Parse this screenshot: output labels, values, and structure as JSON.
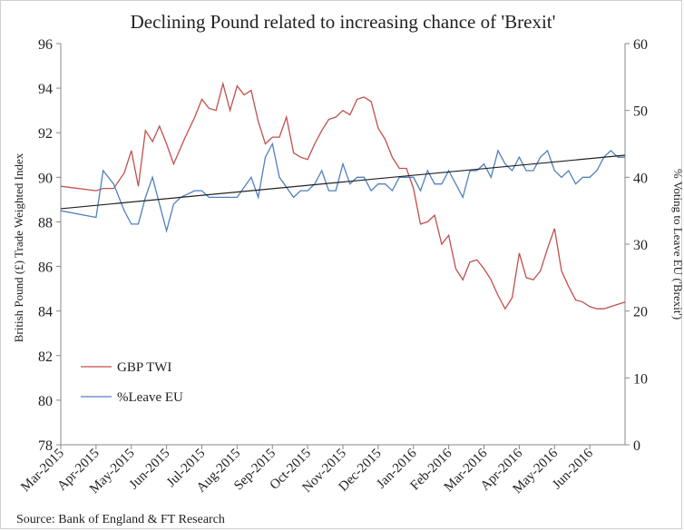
{
  "chart_data": {
    "type": "line",
    "title": "Declining Pound related to increasing chance of 'Brexit'",
    "ylabel_left": "British  Pound (£) Trade Weighted Index",
    "ylabel_right": "% Voting to Leave EU ('Brexit')",
    "source": "Source: Bank of England  & FT Research",
    "ylim_left": [
      78,
      96
    ],
    "ylim_right": [
      0,
      60
    ],
    "yticks_left": [
      "78",
      "80",
      "82",
      "84",
      "86",
      "88",
      "90",
      "92",
      "94",
      "96"
    ],
    "yticks_right": [
      "0",
      "10",
      "20",
      "30",
      "40",
      "50",
      "60"
    ],
    "x_tick_labels": [
      "Mar-2015",
      "Apr-2015",
      "May-2015",
      "Jun-2015",
      "Jul-2015",
      "Aug-2015",
      "Sep-2015",
      "Oct-2015",
      "Nov-2015",
      "Dec-2015",
      "Jan-2016",
      "Feb-2016",
      "Mar-2016",
      "Apr-2016",
      "May-2016",
      "Jun-2016"
    ],
    "legend_placement": "bottom-left",
    "grid": false,
    "series": [
      {
        "name": "GBP TWI",
        "axis": "left",
        "color": "#c0504d",
        "t": [
          0.0,
          1.0,
          1.2,
          1.5,
          1.8,
          2.0,
          2.2,
          2.4,
          2.6,
          2.8,
          3.0,
          3.2,
          3.5,
          3.8,
          4.0,
          4.2,
          4.4,
          4.6,
          4.8,
          5.0,
          5.2,
          5.4,
          5.6,
          5.8,
          6.0,
          6.2,
          6.4,
          6.6,
          6.8,
          7.0,
          7.2,
          7.4,
          7.6,
          7.8,
          8.0,
          8.2,
          8.4,
          8.6,
          8.8,
          9.0,
          9.2,
          9.4,
          9.6,
          9.8,
          10.0,
          10.2,
          10.4,
          10.6,
          10.8,
          11.0,
          11.2,
          11.4,
          11.6,
          11.8,
          12.0,
          12.2,
          12.4,
          12.6,
          12.8,
          13.0,
          13.2,
          13.4,
          13.6,
          13.8,
          14.0,
          14.2,
          14.4,
          14.6,
          14.8,
          15.0,
          15.2,
          15.4,
          15.6,
          15.8,
          16.0
        ],
        "values": [
          89.6,
          89.4,
          89.5,
          89.5,
          90.2,
          91.2,
          89.6,
          92.1,
          91.6,
          92.3,
          91.5,
          90.6,
          91.7,
          92.7,
          93.5,
          93.1,
          93.0,
          94.2,
          93.0,
          94.1,
          93.7,
          93.9,
          92.5,
          91.5,
          91.8,
          91.8,
          92.7,
          91.1,
          90.9,
          90.8,
          91.5,
          92.1,
          92.6,
          92.7,
          93.0,
          92.8,
          93.5,
          93.6,
          93.4,
          92.2,
          91.7,
          90.9,
          90.4,
          90.4,
          89.5,
          87.9,
          88.0,
          88.3,
          87.0,
          87.4,
          85.9,
          85.4,
          86.2,
          86.3,
          85.9,
          85.4,
          84.7,
          84.1,
          84.6,
          86.6,
          85.5,
          85.4,
          85.8,
          86.8,
          87.7,
          85.8,
          85.1,
          84.5,
          84.4,
          84.2,
          84.1,
          84.1,
          84.2,
          84.3,
          84.4
        ]
      },
      {
        "name": "%Leave EU",
        "axis": "right",
        "color": "#4f81bd",
        "t": [
          0.0,
          1.0,
          1.2,
          1.5,
          1.8,
          2.0,
          2.2,
          2.4,
          2.6,
          2.8,
          3.0,
          3.2,
          3.4,
          3.8,
          4.0,
          4.2,
          4.6,
          4.8,
          5.0,
          5.4,
          5.6,
          5.8,
          6.0,
          6.2,
          6.6,
          6.8,
          7.0,
          7.2,
          7.4,
          7.6,
          7.8,
          8.0,
          8.2,
          8.4,
          8.6,
          8.8,
          9.0,
          9.2,
          9.4,
          9.6,
          9.8,
          10.0,
          10.2,
          10.4,
          10.6,
          10.8,
          11.0,
          11.2,
          11.4,
          11.6,
          11.8,
          12.0,
          12.2,
          12.4,
          12.6,
          12.8,
          13.0,
          13.2,
          13.4,
          13.6,
          13.8,
          14.0,
          14.2,
          14.4,
          14.6,
          14.8,
          15.0,
          15.2,
          15.4,
          15.6,
          15.8,
          16.0
        ],
        "values": [
          35,
          34,
          41,
          39,
          35,
          33,
          33,
          37,
          40,
          36,
          32,
          36,
          37,
          38,
          38,
          37,
          37,
          37,
          37,
          40,
          37,
          43,
          45,
          40,
          37,
          38,
          38,
          39,
          41,
          38,
          38,
          42,
          39,
          40,
          40,
          38,
          39,
          39,
          38,
          40,
          40,
          40,
          38,
          41,
          39,
          39,
          41,
          39,
          37,
          41,
          41,
          42,
          40,
          44,
          42,
          41,
          43,
          41,
          41,
          43,
          44,
          41,
          40,
          41,
          39,
          40,
          40,
          41,
          43,
          44,
          43,
          43
        ]
      }
    ],
    "trendline": {
      "axis": "right",
      "from": 35.3,
      "to": 43.3,
      "color": "#222222"
    }
  }
}
